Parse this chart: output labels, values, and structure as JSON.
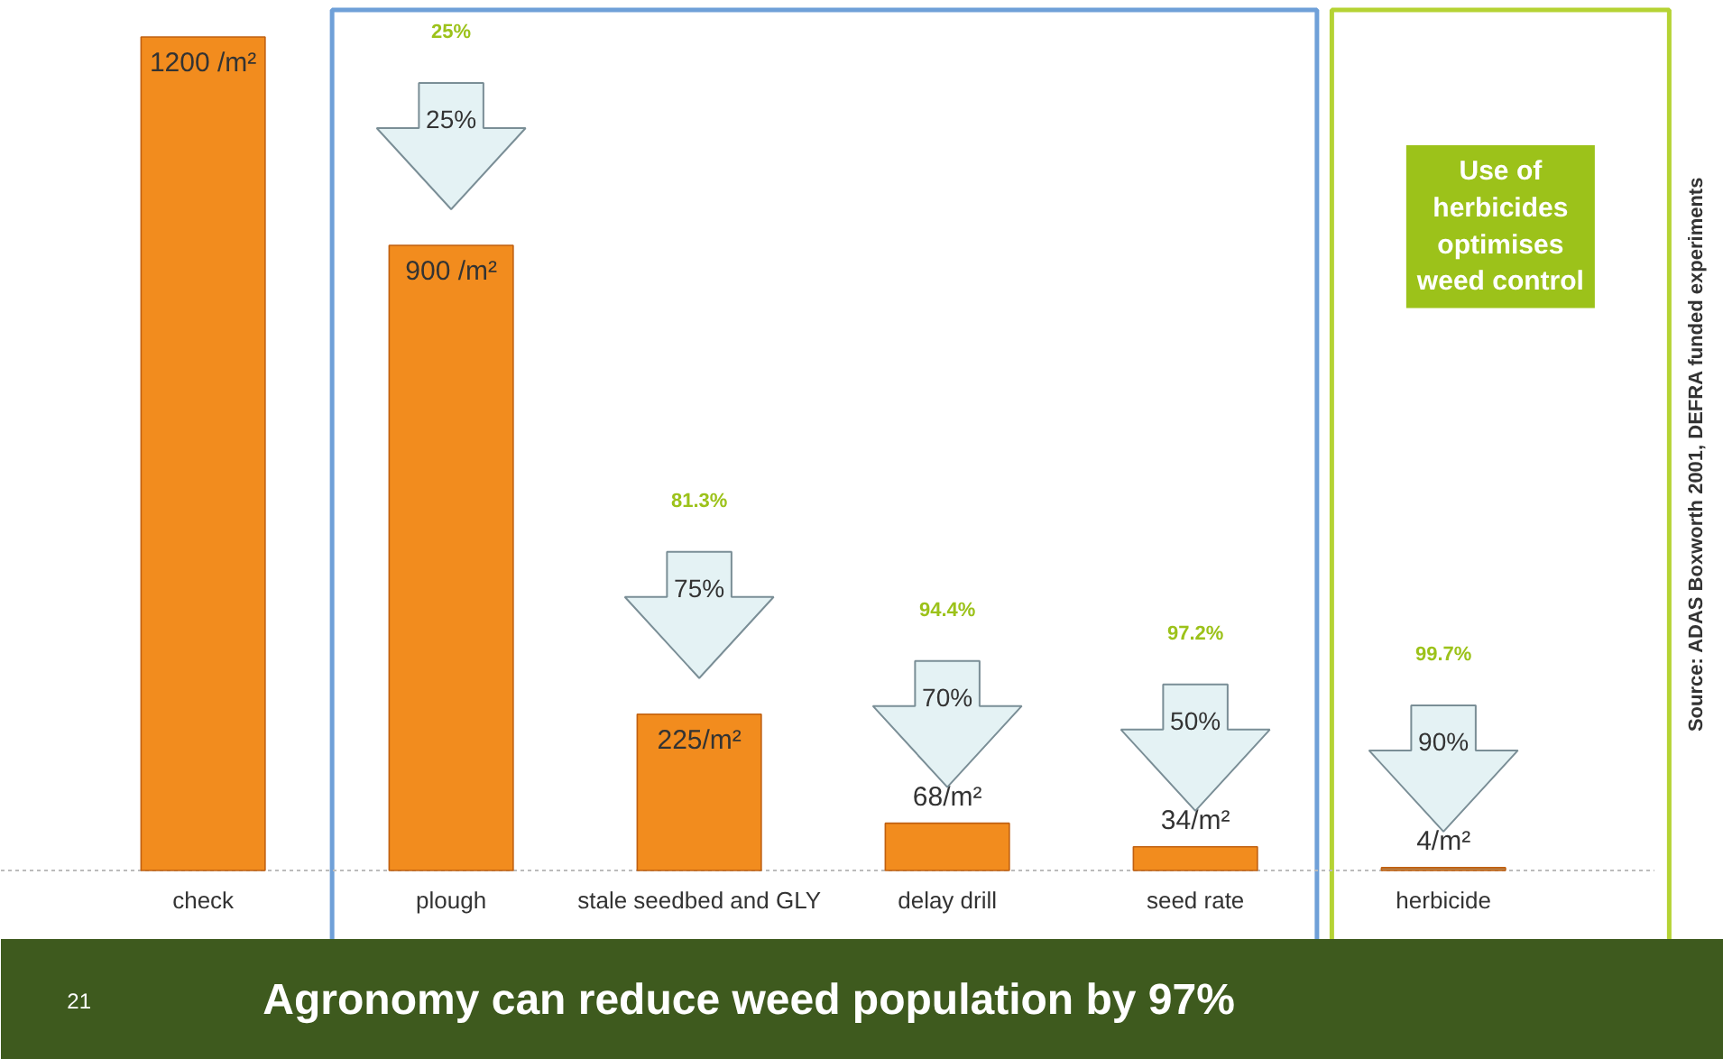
{
  "chart_data": {
    "type": "bar",
    "title": "Agronomy can reduce weed population by 97%",
    "categories": [
      "check",
      "plough",
      "stale seedbed and GLY",
      "delay drill",
      "seed rate",
      "herbicide"
    ],
    "values": [
      1200,
      900,
      225,
      68,
      34,
      4
    ],
    "colors": [
      "#f28c1e",
      "#f28c1e",
      "#f28c1e",
      "#f28c1e",
      "#f28c1e",
      "#b8844e"
    ],
    "value_labels": [
      "1200 /m²",
      "900 /m²",
      "225/m²",
      "68/m²",
      "34/m²",
      "4/m²"
    ],
    "annotations": [
      "25%",
      "25%",
      "81.3%",
      "75%",
      "94.4%",
      "70%",
      "97.2%",
      "50%",
      "99.7%",
      "90%",
      "Use of\nherbicides\noptimises\nweed control",
      "Source: ADAS Boxworth 2001, DEFRA funded experiments",
      "21"
    ]
  }
}
